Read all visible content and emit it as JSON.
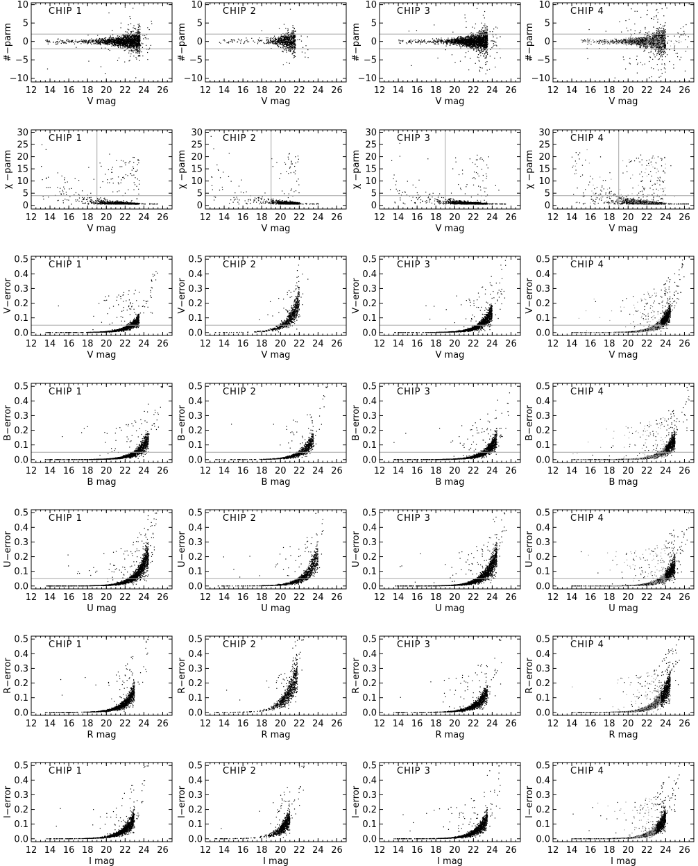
{
  "figure": {
    "chip_labels": [
      "CHIP 1",
      "CHIP 2",
      "CHIP 3",
      "CHIP 4"
    ],
    "colors": {
      "axes": "#000000",
      "dark_points": "#000000",
      "light_points": "#9a9a9a",
      "cut_lines": "#a6a6a6"
    }
  },
  "chart_data": [
    {
      "type": "scatter",
      "xlabel": "V mag",
      "ylabel": "#−parm",
      "xlim": [
        12,
        27
      ],
      "ylim": [
        -11,
        10.5
      ],
      "xticks": [
        "12",
        "14",
        "16",
        "18",
        "20",
        "22",
        "24",
        "26"
      ],
      "yticks": [
        "−10",
        "−5",
        "0",
        "5",
        "10"
      ],
      "ytick_values": [
        -10,
        -5,
        0,
        5,
        10
      ],
      "hlines": [
        2,
        -2
      ],
      "vline": null,
      "model": "sharp",
      "panels": [
        {
          "chip": "CHIP 1",
          "bright_limit": 13.5,
          "peak": 23.6,
          "faint_limit": 25.0,
          "spread": 2.0,
          "density": 0.8,
          "gray": false
        },
        {
          "chip": "CHIP 2",
          "bright_limit": 13.5,
          "peak": 21.6,
          "faint_limit": 23.0,
          "spread": 1.6,
          "density": 0.35,
          "gray": false
        },
        {
          "chip": "CHIP 3",
          "bright_limit": 14.0,
          "peak": 23.5,
          "faint_limit": 25.0,
          "spread": 2.2,
          "density": 0.95,
          "gray": false
        },
        {
          "chip": "CHIP 4",
          "bright_limit": 15.0,
          "peak": 24.0,
          "faint_limit": 26.5,
          "spread": 4.5,
          "density": 1.0,
          "gray": true
        }
      ]
    },
    {
      "type": "scatter",
      "xlabel": "V mag",
      "ylabel": "χ −parm",
      "xlim": [
        12,
        27
      ],
      "ylim": [
        -1.5,
        31
      ],
      "xticks": [
        "12",
        "14",
        "16",
        "18",
        "20",
        "22",
        "24",
        "26"
      ],
      "yticks": [
        "0",
        "5",
        "10",
        "15",
        "20",
        "25",
        "30"
      ],
      "ytick_values": [
        0,
        5,
        10,
        15,
        20,
        25,
        30
      ],
      "hlines": [
        4
      ],
      "vline": 19,
      "model": "chi",
      "panels": [
        {
          "chip": "CHIP 1",
          "bright_limit": 13.0,
          "peak": 23.5,
          "faint_limit": 25.5,
          "spread": 1.0,
          "density": 0.7,
          "gray": false
        },
        {
          "chip": "CHIP 2",
          "bright_limit": 12.5,
          "peak": 22.0,
          "faint_limit": 24.5,
          "spread": 1.0,
          "density": 0.45,
          "gray": false
        },
        {
          "chip": "CHIP 3",
          "bright_limit": 13.0,
          "peak": 23.5,
          "faint_limit": 25.5,
          "spread": 0.8,
          "density": 0.7,
          "gray": false
        },
        {
          "chip": "CHIP 4",
          "bright_limit": 14.0,
          "peak": 24.0,
          "faint_limit": 26.5,
          "spread": 1.4,
          "density": 1.0,
          "gray": true
        }
      ]
    },
    {
      "type": "scatter",
      "xlabel": "V mag",
      "ylabel": "V−error",
      "xlim": [
        12,
        27
      ],
      "ylim": [
        -0.02,
        0.52
      ],
      "xticks": [
        "12",
        "14",
        "16",
        "18",
        "20",
        "22",
        "24",
        "26"
      ],
      "yticks": [
        "0.0",
        "0.1",
        "0.2",
        "0.3",
        "0.4",
        "0.5"
      ],
      "ytick_values": [
        0,
        0.1,
        0.2,
        0.3,
        0.4,
        0.5
      ],
      "hlines": [
        0.05
      ],
      "vline": null,
      "model": "error",
      "panels": [
        {
          "chip": "CHIP 1",
          "bright_limit": 13.5,
          "peak": 23.5,
          "faint_limit": 25.5,
          "spread": 1.0,
          "density": 0.65,
          "gray": false
        },
        {
          "chip": "CHIP 2",
          "bright_limit": 13.0,
          "peak": 22.0,
          "faint_limit": 23.0,
          "spread": 1.0,
          "density": 0.35,
          "gray": false
        },
        {
          "chip": "CHIP 3",
          "bright_limit": 13.5,
          "peak": 24.0,
          "faint_limit": 25.5,
          "spread": 1.0,
          "density": 0.7,
          "gray": false
        },
        {
          "chip": "CHIP 4",
          "bright_limit": 14.0,
          "peak": 24.5,
          "faint_limit": 26.0,
          "spread": 1.6,
          "density": 1.0,
          "gray": true
        }
      ]
    },
    {
      "type": "scatter",
      "xlabel": "B mag",
      "ylabel": "B−error",
      "xlim": [
        12,
        27
      ],
      "ylim": [
        -0.02,
        0.52
      ],
      "xticks": [
        "12",
        "14",
        "16",
        "18",
        "20",
        "22",
        "24",
        "26"
      ],
      "yticks": [
        "0.0",
        "0.1",
        "0.2",
        "0.3",
        "0.4",
        "0.5"
      ],
      "ytick_values": [
        0,
        0.1,
        0.2,
        0.3,
        0.4,
        0.5
      ],
      "hlines": [
        0.05
      ],
      "vline": null,
      "model": "error",
      "panels": [
        {
          "chip": "CHIP 1",
          "bright_limit": 13.5,
          "peak": 24.5,
          "faint_limit": 26.0,
          "spread": 1.0,
          "density": 0.7,
          "gray": false
        },
        {
          "chip": "CHIP 2",
          "bright_limit": 13.0,
          "peak": 23.5,
          "faint_limit": 25.0,
          "spread": 1.0,
          "density": 0.4,
          "gray": false
        },
        {
          "chip": "CHIP 3",
          "bright_limit": 13.5,
          "peak": 24.5,
          "faint_limit": 26.0,
          "spread": 1.0,
          "density": 0.7,
          "gray": false
        },
        {
          "chip": "CHIP 4",
          "bright_limit": 14.0,
          "peak": 25.0,
          "faint_limit": 26.5,
          "spread": 1.6,
          "density": 1.0,
          "gray": true
        }
      ]
    },
    {
      "type": "scatter",
      "xlabel": "U mag",
      "ylabel": "U−error",
      "xlim": [
        12,
        27
      ],
      "ylim": [
        -0.02,
        0.52
      ],
      "xticks": [
        "12",
        "14",
        "16",
        "18",
        "20",
        "22",
        "24",
        "26"
      ],
      "yticks": [
        "0.0",
        "0.1",
        "0.2",
        "0.3",
        "0.4",
        "0.5"
      ],
      "ytick_values": [
        0,
        0.1,
        0.2,
        0.3,
        0.4,
        0.5
      ],
      "hlines": [
        0.05
      ],
      "vline": null,
      "model": "error",
      "panels": [
        {
          "chip": "CHIP 1",
          "bright_limit": 13.5,
          "peak": 24.5,
          "faint_limit": 25.5,
          "spread": 1.0,
          "density": 0.85,
          "gray": false
        },
        {
          "chip": "CHIP 2",
          "bright_limit": 13.0,
          "peak": 24.0,
          "faint_limit": 25.0,
          "spread": 1.0,
          "density": 0.45,
          "gray": false
        },
        {
          "chip": "CHIP 3",
          "bright_limit": 13.5,
          "peak": 24.5,
          "faint_limit": 25.5,
          "spread": 1.0,
          "density": 0.85,
          "gray": false
        },
        {
          "chip": "CHIP 4",
          "bright_limit": 14.0,
          "peak": 25.0,
          "faint_limit": 26.5,
          "spread": 1.8,
          "density": 1.0,
          "gray": true
        }
      ]
    },
    {
      "type": "scatter",
      "xlabel": "R mag",
      "ylabel": "R−error",
      "xlim": [
        12,
        27
      ],
      "ylim": [
        -0.02,
        0.52
      ],
      "xticks": [
        "12",
        "14",
        "16",
        "18",
        "20",
        "22",
        "24",
        "26"
      ],
      "yticks": [
        "0.0",
        "0.1",
        "0.2",
        "0.3",
        "0.4",
        "0.5"
      ],
      "ytick_values": [
        0,
        0.1,
        0.2,
        0.3,
        0.4,
        0.5
      ],
      "hlines": [],
      "vline": null,
      "model": "error",
      "panels": [
        {
          "chip": "CHIP 1",
          "bright_limit": 13.5,
          "peak": 23.0,
          "faint_limit": 24.5,
          "spread": 1.0,
          "density": 0.55,
          "gray": false
        },
        {
          "chip": "CHIP 2",
          "bright_limit": 13.0,
          "peak": 21.8,
          "faint_limit": 22.5,
          "spread": 1.0,
          "density": 0.35,
          "gray": false
        },
        {
          "chip": "CHIP 3",
          "bright_limit": 13.5,
          "peak": 23.5,
          "faint_limit": 25.0,
          "spread": 1.0,
          "density": 0.55,
          "gray": false
        },
        {
          "chip": "CHIP 4",
          "bright_limit": 14.0,
          "peak": 24.5,
          "faint_limit": 25.5,
          "spread": 1.8,
          "density": 1.0,
          "gray": true
        }
      ]
    },
    {
      "type": "scatter",
      "xlabel": "I mag",
      "ylabel": "I−error",
      "xlim": [
        12,
        27
      ],
      "ylim": [
        -0.02,
        0.52
      ],
      "xticks": [
        "12",
        "14",
        "16",
        "18",
        "20",
        "22",
        "24",
        "26"
      ],
      "yticks": [
        "0.0",
        "0.1",
        "0.2",
        "0.3",
        "0.4",
        "0.5"
      ],
      "ytick_values": [
        0,
        0.1,
        0.2,
        0.3,
        0.4,
        0.5
      ],
      "hlines": [],
      "vline": null,
      "model": "error",
      "panels": [
        {
          "chip": "CHIP 1",
          "bright_limit": 13.5,
          "peak": 23.0,
          "faint_limit": 24.5,
          "spread": 1.0,
          "density": 0.6,
          "gray": false
        },
        {
          "chip": "CHIP 2",
          "bright_limit": 13.0,
          "peak": 21.0,
          "faint_limit": 22.5,
          "spread": 1.0,
          "density": 0.35,
          "gray": false
        },
        {
          "chip": "CHIP 3",
          "bright_limit": 13.5,
          "peak": 23.5,
          "faint_limit": 25.0,
          "spread": 1.0,
          "density": 0.6,
          "gray": false
        },
        {
          "chip": "CHIP 4",
          "bright_limit": 14.0,
          "peak": 24.0,
          "faint_limit": 25.5,
          "spread": 1.8,
          "density": 1.0,
          "gray": true
        }
      ]
    }
  ]
}
